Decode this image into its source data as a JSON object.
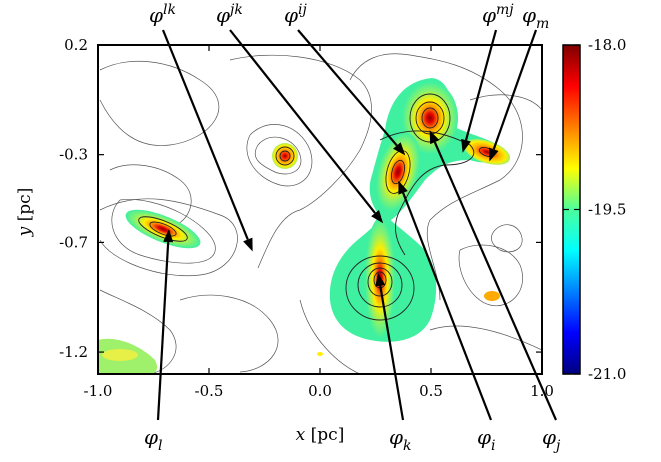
{
  "chart_data": {
    "type": "heatmap",
    "xlabel": "x [pc]",
    "ylabel": "y [pc]",
    "xlim": [
      -1.0,
      1.0
    ],
    "ylim": [
      -1.3,
      0.2
    ],
    "x_ticks": [
      "-1.0",
      "-0.5",
      "0.0",
      "0.5",
      "1.0"
    ],
    "y_ticks": [
      "0.2",
      "-0.3",
      "-0.7",
      "-1.2"
    ],
    "y_tick_values": [
      0.2,
      -0.3,
      -0.7,
      -1.2
    ],
    "colorbar": {
      "ticks": [
        "-18.0",
        "-19.5",
        "-21.0"
      ],
      "range": [
        -21.0,
        -18.0
      ],
      "colormap": "jet"
    },
    "peaks": [
      {
        "id": "j",
        "x": 0.49,
        "y": -0.18
      },
      {
        "id": "i",
        "x": 0.35,
        "y": -0.41
      },
      {
        "id": "k",
        "x": 0.26,
        "y": -0.83
      },
      {
        "id": "m",
        "x": 0.76,
        "y": -0.34
      },
      {
        "id": "l",
        "x": -0.68,
        "y": -0.63
      },
      {
        "id": "n",
        "x": -0.16,
        "y": -0.35
      }
    ],
    "saddles": [
      {
        "id": "jk",
        "x": 0.29,
        "y": -0.62
      },
      {
        "id": "ij",
        "x": 0.39,
        "y": -0.31
      },
      {
        "id": "mj",
        "x": 0.64,
        "y": -0.3
      },
      {
        "id": "lk",
        "x": -0.3,
        "y": -0.75
      }
    ],
    "annotations": [
      {
        "sym": "φ",
        "sup": "lk",
        "sub": "",
        "target": "lk",
        "side": "top"
      },
      {
        "sym": "φ",
        "sup": "jk",
        "sub": "",
        "target": "jk",
        "side": "top"
      },
      {
        "sym": "φ",
        "sup": "ij",
        "sub": "",
        "target": "ij",
        "side": "top"
      },
      {
        "sym": "φ",
        "sup": "mj",
        "sub": "",
        "target": "mj",
        "side": "top"
      },
      {
        "sym": "φ",
        "sup": "",
        "sub": "m",
        "target": "m",
        "side": "top"
      },
      {
        "sym": "φ",
        "sup": "",
        "sub": "l",
        "target": "l",
        "side": "bottom"
      },
      {
        "sym": "φ",
        "sup": "",
        "sub": "k",
        "target": "k",
        "side": "bottom"
      },
      {
        "sym": "φ",
        "sup": "",
        "sub": "i",
        "target": "i",
        "side": "bottom"
      },
      {
        "sym": "φ",
        "sup": "",
        "sub": "j",
        "target": "j",
        "side": "bottom"
      }
    ]
  }
}
